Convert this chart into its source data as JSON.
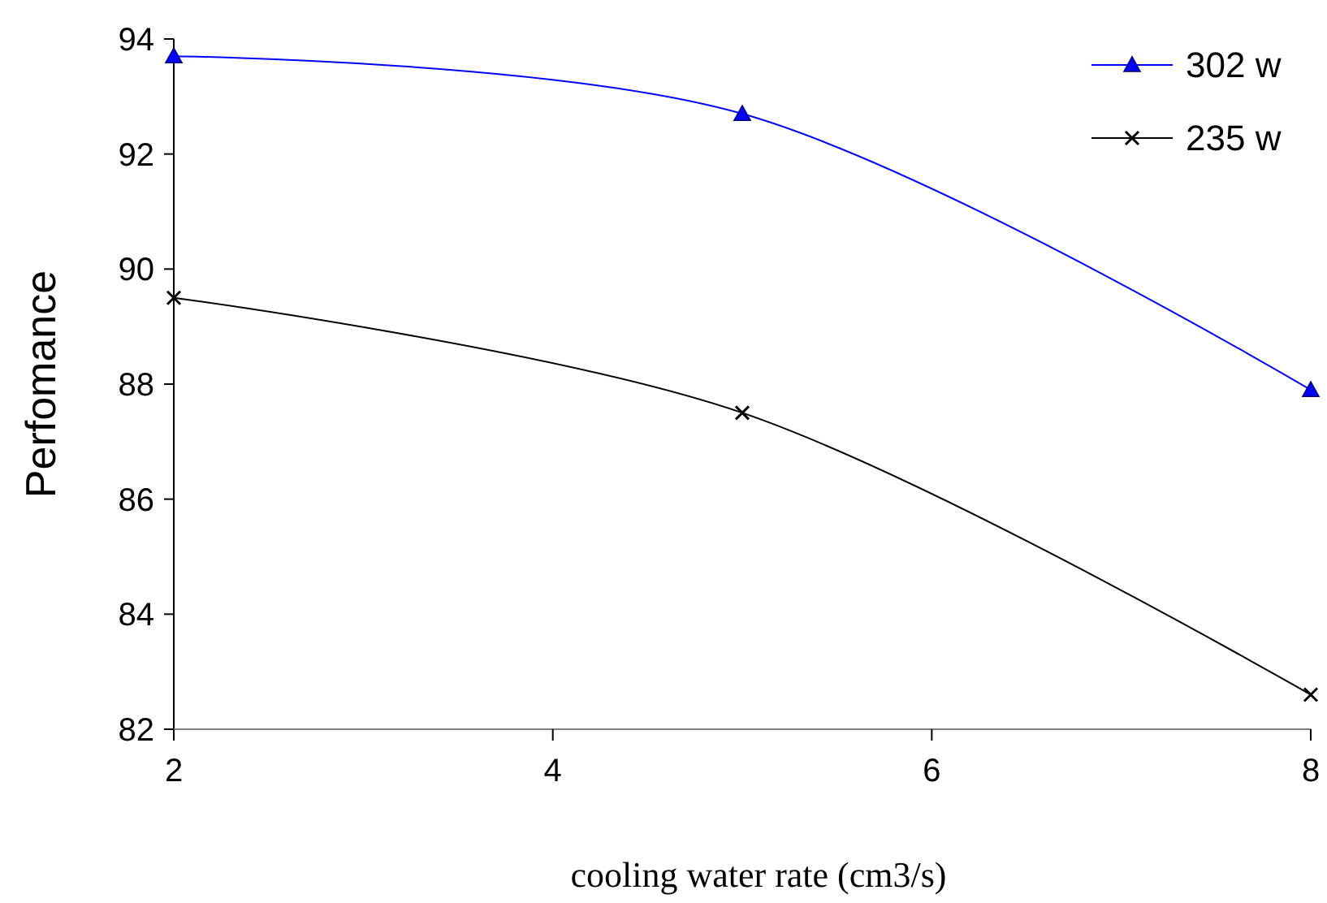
{
  "chart_data": {
    "type": "line",
    "xlabel": "cooling water rate (cm3/s)",
    "ylabel": "Perfomance",
    "x": [
      2,
      5,
      8
    ],
    "series": [
      {
        "name": "302 w",
        "color": "#0000ff",
        "values": [
          93.7,
          92.7,
          87.9
        ],
        "marker": "triangle"
      },
      {
        "name": "235 w",
        "color": "#000000",
        "values": [
          89.5,
          87.5,
          82.6
        ],
        "marker": "cross"
      }
    ],
    "xlim": [
      2,
      8
    ],
    "xticks": [
      2,
      4,
      6,
      8
    ],
    "ylim": [
      82,
      94
    ],
    "yticks": [
      82,
      84,
      86,
      88,
      90,
      92,
      94
    ],
    "grid": false,
    "legend": "top right",
    "line_style": "solid"
  }
}
